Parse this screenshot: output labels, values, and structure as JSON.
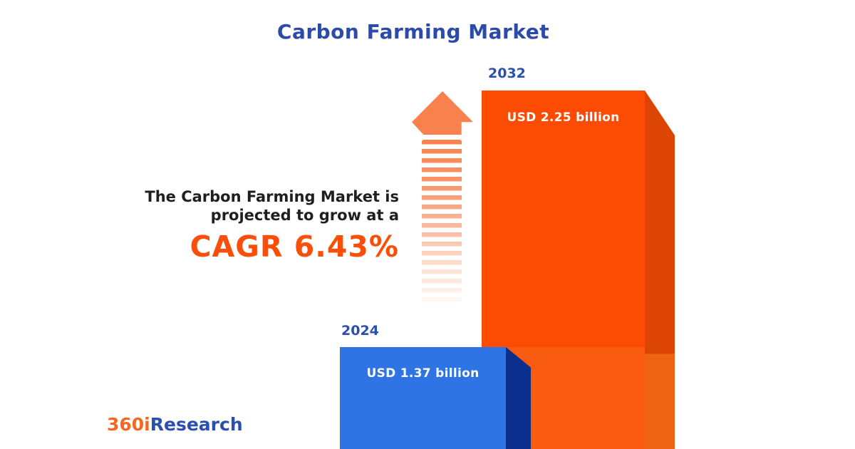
{
  "title": "Carbon Farming Market",
  "annotation": {
    "line1": "The Carbon Farming Market is",
    "line2": "projected to grow at a",
    "cagr": "CAGR 6.43%"
  },
  "bars": {
    "b2024": {
      "year": "2024",
      "value_label": "USD 1.37 billion"
    },
    "b2032": {
      "year": "2032",
      "value_label": "USD 2.25 billion"
    }
  },
  "logo": {
    "prefix": "360i",
    "suffix": "Research"
  },
  "chart_data": {
    "type": "bar",
    "title": "Carbon Farming Market",
    "categories": [
      "2024",
      "2032"
    ],
    "values": [
      1.37,
      2.25
    ],
    "unit": "USD billion",
    "value_labels": [
      "USD 1.37 billion",
      "USD 2.25 billion"
    ],
    "cagr_percent": 6.43,
    "annotation": "The Carbon Farming Market is projected to grow at a CAGR 6.43%",
    "bar_colors": [
      "#2E74E5",
      "#FC4B02"
    ],
    "bar_side_colors": [
      "#0A2F8C",
      "#DC4503"
    ],
    "legend": "none",
    "axes": "none",
    "style": "3d-infographic"
  },
  "colors": {
    "title_blue": "#2B4AA9",
    "year_label_blue": "#2B4FAE",
    "orange_face": "#FC4B02",
    "orange_face_light": "#F95C10",
    "orange_side": "#DC4503",
    "orange_side_light": "#EC6312",
    "blue_face": "#2E74E5",
    "blue_side": "#0A2F8C",
    "arrow_salmon": "#F8814D",
    "cagr_orange": "#FB4E0B",
    "annotation_text": "#1F1F1F",
    "logo_orange": "#F26724",
    "logo_blue": "#2B4FAE",
    "background": "#FFFFFF"
  }
}
